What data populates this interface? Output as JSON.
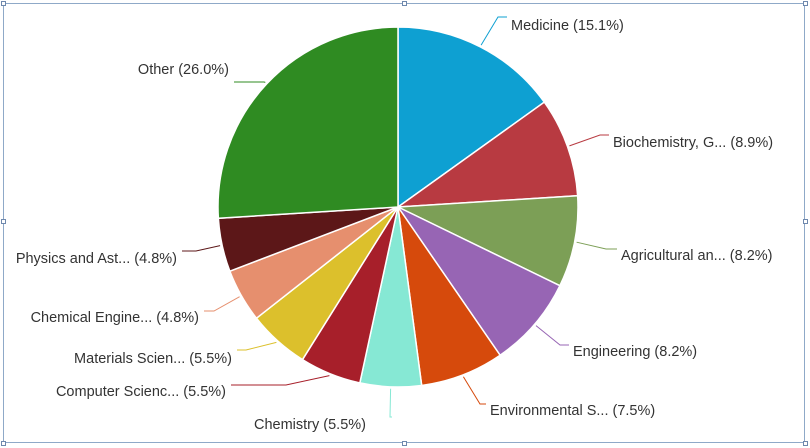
{
  "chart_data": {
    "type": "pie",
    "title": "",
    "legend": "none",
    "start_angle_deg": 0,
    "direction": "clockwise",
    "slices": [
      {
        "label": "Medicine",
        "display": "Medicine (15.1%)",
        "value": 15.1,
        "color": "#0ea0d2"
      },
      {
        "label": "Biochemistry, G...",
        "display": "Biochemistry, G... (8.9%)",
        "value": 8.9,
        "color": "#b83a41"
      },
      {
        "label": "Agricultural an...",
        "display": "Agricultural an... (8.2%)",
        "value": 8.2,
        "color": "#7c9f56"
      },
      {
        "label": "Engineering",
        "display": "Engineering (8.2%)",
        "value": 8.2,
        "color": "#9765b4"
      },
      {
        "label": "Environmental S...",
        "display": "Environmental S... (7.5%)",
        "value": 7.5,
        "color": "#d64a0c"
      },
      {
        "label": "Chemistry",
        "display": "Chemistry (5.5%)",
        "value": 5.5,
        "color": "#86e8d4"
      },
      {
        "label": "Computer Scienc...",
        "display": "Computer Scienc... (5.5%)",
        "value": 5.5,
        "color": "#a71f2a"
      },
      {
        "label": "Materials Scien...",
        "display": "Materials Scien... (5.5%)",
        "value": 5.5,
        "color": "#dcc02c"
      },
      {
        "label": "Chemical Engine...",
        "display": "Chemical Engine... (4.8%)",
        "value": 4.8,
        "color": "#e68f6e"
      },
      {
        "label": "Physics and Ast...",
        "display": "Physics and Ast... (4.8%)",
        "value": 4.8,
        "color": "#5c1718"
      },
      {
        "label": "Other",
        "display": "Other (26.0%)",
        "value": 26.0,
        "color": "#2f8b22"
      }
    ]
  }
}
